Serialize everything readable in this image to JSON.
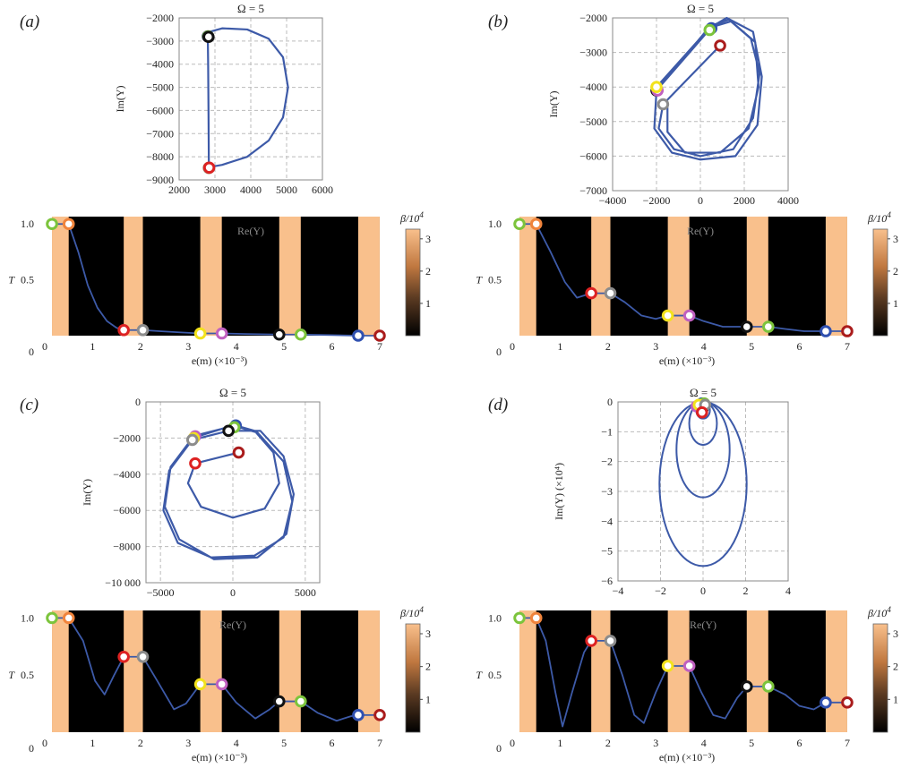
{
  "figure": {
    "transmission_ylabel": "T",
    "colorbar_label": "β/10",
    "colorbar_label_exp": "4",
    "colorbar_ticks": [
      1,
      2,
      3
    ],
    "colorbar_range": [
      0,
      3.3
    ],
    "colors": {
      "curve": "#3d5aa8",
      "high_beta": "#f9c08c",
      "low_beta": "#000000",
      "grid": "#bbbbbb",
      "frame": "#888888"
    },
    "marker_colors": [
      "#7cc43c",
      "#f0843c",
      "#dd2222",
      "#8c8c8c",
      "#f2e21c",
      "#c060c0",
      "#111111",
      "#7cc43c",
      "#3050b0",
      "#aa1c1c"
    ]
  },
  "chart_data": [
    {
      "panel": "(a)",
      "type": "line",
      "title": "Ω = 5",
      "xlabel": "Re(Y)",
      "ylabel": "Im(Y)",
      "xlim": [
        2000,
        6000
      ],
      "ylim": [
        -9000,
        -2000
      ],
      "xticks": [
        2000,
        3000,
        4000,
        5000,
        6000
      ],
      "yticks": [
        -9000,
        -8000,
        -7000,
        -6000,
        -5000,
        -4000,
        -3000,
        -2000
      ],
      "xtick_labels": [
        "2000",
        "3000",
        "4000",
        "5000",
        "6000"
      ],
      "ytick_labels": [
        "−9000",
        "−8000",
        "−7000",
        "−6000",
        "−5000",
        "−4000",
        "−3000",
        "−2000"
      ],
      "grid": true,
      "curve": [
        [
          2800,
          -2800
        ],
        [
          2850,
          -2600
        ],
        [
          3200,
          -2450
        ],
        [
          3900,
          -2500
        ],
        [
          4500,
          -2900
        ],
        [
          4900,
          -3700
        ],
        [
          5040,
          -5000
        ],
        [
          4900,
          -6300
        ],
        [
          4500,
          -7300
        ],
        [
          3900,
          -8000
        ],
        [
          3200,
          -8350
        ],
        [
          2830,
          -8450
        ],
        [
          2820,
          -8500
        ],
        [
          2830,
          -8400
        ],
        [
          2820,
          -6000
        ],
        [
          2810,
          -4000
        ],
        [
          2800,
          -2800
        ]
      ],
      "markers": [
        [
          2800,
          -2800
        ],
        [
          2800,
          -2800
        ],
        [
          2810,
          -2800
        ],
        [
          2820,
          -2820
        ],
        [
          2830,
          -8480
        ],
        [
          2830,
          -8480
        ],
        [
          2830,
          -8480
        ],
        [
          2840,
          -8470
        ]
      ]
    },
    {
      "panel": "(b)",
      "type": "line",
      "title": "Ω = 5",
      "xlabel": "Re(Y)",
      "ylabel": "Im(Y)",
      "xlim": [
        -4000,
        4000
      ],
      "ylim": [
        -7000,
        -2000
      ],
      "xticks": [
        -4000,
        -2000,
        0,
        2000,
        4000
      ],
      "yticks": [
        -7000,
        -6000,
        -5000,
        -4000,
        -3000,
        -2000
      ],
      "xtick_labels": [
        "−4000",
        "−2000",
        "0",
        "2000",
        "4000"
      ],
      "ytick_labels": [
        "−7000",
        "−6000",
        "−5000",
        "−4000",
        "−3000",
        "−2000"
      ],
      "grid": true,
      "curve": [
        [
          900,
          -2800
        ],
        [
          -1700,
          -4500
        ],
        [
          -1900,
          -5200
        ],
        [
          -1200,
          -5800
        ],
        [
          0,
          -6000
        ],
        [
          1500,
          -5800
        ],
        [
          2400,
          -4900
        ],
        [
          2700,
          -3600
        ],
        [
          2300,
          -2600
        ],
        [
          1300,
          -2050
        ],
        [
          600,
          -2200
        ],
        [
          -2000,
          -4100
        ],
        [
          -2000,
          -4000
        ],
        [
          400,
          -2300
        ],
        [
          1200,
          -2000
        ],
        [
          2400,
          -2400
        ],
        [
          2800,
          -3700
        ],
        [
          2600,
          -5100
        ],
        [
          1600,
          -6000
        ],
        [
          0,
          -6100
        ],
        [
          -1300,
          -5900
        ],
        [
          -2100,
          -5200
        ],
        [
          -2000,
          -4100
        ],
        [
          300,
          -2350
        ],
        [
          600,
          -2250
        ],
        [
          1400,
          -2100
        ],
        [
          2500,
          -2700
        ],
        [
          2650,
          -4000
        ],
        [
          2200,
          -5200
        ],
        [
          900,
          -5900
        ],
        [
          -700,
          -5900
        ],
        [
          -1500,
          -5300
        ],
        [
          -1500,
          -4600
        ],
        [
          -1700,
          -4500
        ]
      ],
      "markers": [
        [
          900,
          -2800
        ],
        [
          500,
          -2300
        ],
        [
          420,
          -2350
        ],
        [
          -2000,
          -4100
        ],
        [
          -1950,
          -4100
        ],
        [
          -2000,
          -4000
        ],
        [
          -1700,
          -4500
        ]
      ]
    },
    {
      "panel": "(c)",
      "type": "line",
      "title": "Ω = 5",
      "xlabel": "Re(Y)",
      "ylabel": "Im(Y)",
      "xlim": [
        -6000,
        6000
      ],
      "ylim": [
        -10000,
        0
      ],
      "xticks": [
        -5000,
        0,
        5000
      ],
      "yticks": [
        -10000,
        -8000,
        -6000,
        -4000,
        -2000,
        0
      ],
      "xtick_labels": [
        "−5000",
        "0",
        "5000"
      ],
      "ytick_labels": [
        "−10 000",
        "−8000",
        "−6000",
        "−4000",
        "−2000",
        "0"
      ],
      "grid": true,
      "curve": [
        [
          400,
          -2800
        ],
        [
          -2600,
          -3400
        ],
        [
          -3100,
          -4500
        ],
        [
          -2200,
          -5800
        ],
        [
          0,
          -6400
        ],
        [
          2200,
          -5900
        ],
        [
          3200,
          -4500
        ],
        [
          2800,
          -2800
        ],
        [
          1500,
          -1600
        ],
        [
          200,
          -1300
        ],
        [
          -2800,
          -1900
        ],
        [
          -2900,
          -2200
        ],
        [
          -4400,
          -3800
        ],
        [
          -4800,
          -6000
        ],
        [
          -3800,
          -7800
        ],
        [
          -1500,
          -8600
        ],
        [
          1500,
          -8500
        ],
        [
          3500,
          -7500
        ],
        [
          4100,
          -5500
        ],
        [
          3500,
          -3300
        ],
        [
          1700,
          -1700
        ],
        [
          0,
          -1300
        ],
        [
          -2800,
          -2000
        ],
        [
          -4300,
          -3600
        ],
        [
          -4700,
          -5800
        ],
        [
          -3700,
          -7600
        ],
        [
          -1300,
          -8700
        ],
        [
          1700,
          -8600
        ],
        [
          3700,
          -7300
        ],
        [
          4200,
          -5100
        ],
        [
          3500,
          -3000
        ],
        [
          1900,
          -1600
        ],
        [
          -300,
          -1600
        ],
        [
          -2800,
          -2100
        ]
      ],
      "markers": [
        [
          400,
          -2800
        ],
        [
          200,
          -1300
        ],
        [
          100,
          -1400
        ],
        [
          -300,
          -1600
        ],
        [
          -2600,
          -1900
        ],
        [
          -2700,
          -2000
        ],
        [
          -2800,
          -2100
        ],
        [
          -2600,
          -3400
        ]
      ]
    },
    {
      "panel": "(d)",
      "type": "line",
      "title": "Ω = 5",
      "xlabel": "Re(Y)",
      "ylabel": "Im(Y) (×10⁴)",
      "x_multiplier": "×10⁻⁴",
      "xlim": [
        -4,
        4
      ],
      "ylim": [
        -6,
        0
      ],
      "xticks": [
        -4,
        -2,
        0,
        2,
        4
      ],
      "yticks": [
        -6,
        -5,
        -4,
        -3,
        -2,
        -1,
        0
      ],
      "xtick_labels": [
        "−4",
        "−2",
        "0",
        "2",
        "4"
      ],
      "ytick_labels": [
        "−6",
        "−5",
        "−4",
        "−3",
        "−2",
        "−1",
        "0"
      ],
      "grid": true,
      "loops": [
        {
          "cx": 0.0,
          "cy": -2.75,
          "rx": 2.05,
          "ry": 2.75
        },
        {
          "cx": 0.0,
          "cy": -1.6,
          "rx": 1.25,
          "ry": 1.6
        },
        {
          "cx": 0.0,
          "cy": -0.72,
          "rx": 0.65,
          "ry": 0.72
        },
        {
          "cx": 0.0,
          "cy": -0.28,
          "rx": 0.32,
          "ry": 0.28
        }
      ],
      "markers": [
        [
          0,
          -0.1
        ],
        [
          -0.05,
          -0.05
        ],
        [
          0.05,
          -0.05
        ],
        [
          0.0,
          -0.2
        ],
        [
          -0.3,
          -0.15
        ],
        [
          -0.2,
          -0.1
        ],
        [
          0.1,
          -0.1
        ],
        [
          -0.05,
          -0.35
        ]
      ]
    },
    {
      "panel": "(a)",
      "type": "line",
      "xlabel": "e(m) (×10⁻³)",
      "ylabel": "T",
      "xlim": [
        0,
        7.3
      ],
      "ylim": [
        0,
        1.05
      ],
      "xticks": [
        0,
        1,
        2,
        3,
        4,
        5,
        6,
        7
      ],
      "ytick_labels": [
        "0.5",
        "1.0"
      ],
      "yticks": [
        0.5,
        1.0
      ],
      "grid": false,
      "bands": [
        [
          0.15,
          0.5
        ],
        [
          1.65,
          2.05
        ],
        [
          3.25,
          3.7
        ],
        [
          4.9,
          5.35
        ],
        [
          6.55,
          7.0
        ]
      ],
      "markers": [
        [
          0.15,
          1.0
        ],
        [
          0.5,
          1.0
        ],
        [
          1.65,
          0.05
        ],
        [
          2.05,
          0.05
        ],
        [
          3.25,
          0.02
        ],
        [
          3.7,
          0.02
        ],
        [
          4.9,
          0.01
        ],
        [
          5.35,
          0.01
        ],
        [
          6.55,
          0.0
        ],
        [
          7.0,
          0.0
        ]
      ],
      "curve": [
        [
          0.15,
          1.0
        ],
        [
          0.5,
          1.0
        ],
        [
          0.7,
          0.75
        ],
        [
          0.9,
          0.45
        ],
        [
          1.1,
          0.25
        ],
        [
          1.3,
          0.13
        ],
        [
          1.5,
          0.07
        ],
        [
          1.65,
          0.05
        ],
        [
          2.05,
          0.05
        ],
        [
          2.4,
          0.04
        ],
        [
          2.8,
          0.03
        ],
        [
          3.25,
          0.02
        ],
        [
          3.7,
          0.02
        ],
        [
          4.2,
          0.015
        ],
        [
          4.9,
          0.01
        ],
        [
          5.35,
          0.01
        ],
        [
          6.0,
          0.005
        ],
        [
          6.55,
          0.0
        ],
        [
          7.0,
          0.0
        ]
      ]
    },
    {
      "panel": "(b)",
      "type": "line",
      "xlabel": "e(m) (×10⁻³)",
      "ylabel": "T",
      "xlim": [
        0,
        7.3
      ],
      "ylim": [
        0,
        1.05
      ],
      "xticks": [
        0,
        1,
        2,
        3,
        4,
        5,
        6,
        7
      ],
      "ytick_labels": [
        "0.5",
        "1.0"
      ],
      "yticks": [
        0.5,
        1.0
      ],
      "grid": false,
      "bands": [
        [
          0.15,
          0.5
        ],
        [
          1.65,
          2.05
        ],
        [
          3.25,
          3.7
        ],
        [
          4.9,
          5.35
        ],
        [
          6.55,
          7.0
        ]
      ],
      "markers": [
        [
          0.15,
          1.0
        ],
        [
          0.5,
          1.0
        ],
        [
          1.65,
          0.38
        ],
        [
          2.05,
          0.38
        ],
        [
          3.25,
          0.18
        ],
        [
          3.7,
          0.18
        ],
        [
          4.9,
          0.08
        ],
        [
          5.35,
          0.08
        ],
        [
          6.55,
          0.04
        ],
        [
          7.0,
          0.04
        ]
      ],
      "curve": [
        [
          0.15,
          1.0
        ],
        [
          0.5,
          1.0
        ],
        [
          0.8,
          0.75
        ],
        [
          1.1,
          0.48
        ],
        [
          1.35,
          0.34
        ],
        [
          1.65,
          0.38
        ],
        [
          2.05,
          0.38
        ],
        [
          2.35,
          0.3
        ],
        [
          2.7,
          0.18
        ],
        [
          3.0,
          0.15
        ],
        [
          3.25,
          0.18
        ],
        [
          3.7,
          0.18
        ],
        [
          4.0,
          0.13
        ],
        [
          4.4,
          0.08
        ],
        [
          4.9,
          0.08
        ],
        [
          5.35,
          0.08
        ],
        [
          5.7,
          0.06
        ],
        [
          6.1,
          0.04
        ],
        [
          6.55,
          0.04
        ],
        [
          7.0,
          0.04
        ]
      ]
    },
    {
      "panel": "(c)",
      "type": "line",
      "xlabel": "e(m) (×10⁻³)",
      "ylabel": "T",
      "xlim": [
        0,
        7.3
      ],
      "ylim": [
        0,
        1.05
      ],
      "xticks": [
        0,
        1,
        2,
        3,
        4,
        5,
        6,
        7
      ],
      "ytick_labels": [
        "0.5",
        "1.0"
      ],
      "yticks": [
        0.5,
        1.0
      ],
      "grid": false,
      "bands": [
        [
          0.15,
          0.5
        ],
        [
          1.65,
          2.05
        ],
        [
          3.25,
          3.7
        ],
        [
          4.9,
          5.35
        ],
        [
          6.55,
          7.0
        ]
      ],
      "markers": [
        [
          0.15,
          1.0
        ],
        [
          0.5,
          1.0
        ],
        [
          1.65,
          0.66
        ],
        [
          2.05,
          0.66
        ],
        [
          3.25,
          0.42
        ],
        [
          3.7,
          0.42
        ],
        [
          4.9,
          0.27
        ],
        [
          5.35,
          0.27
        ],
        [
          6.55,
          0.15
        ],
        [
          7.0,
          0.15
        ]
      ],
      "curve": [
        [
          0.15,
          1.0
        ],
        [
          0.5,
          1.0
        ],
        [
          0.8,
          0.8
        ],
        [
          1.05,
          0.45
        ],
        [
          1.25,
          0.33
        ],
        [
          1.45,
          0.5
        ],
        [
          1.65,
          0.66
        ],
        [
          2.05,
          0.66
        ],
        [
          2.35,
          0.45
        ],
        [
          2.7,
          0.2
        ],
        [
          2.95,
          0.25
        ],
        [
          3.25,
          0.42
        ],
        [
          3.7,
          0.42
        ],
        [
          4.0,
          0.26
        ],
        [
          4.4,
          0.12
        ],
        [
          4.7,
          0.2
        ],
        [
          4.9,
          0.27
        ],
        [
          5.35,
          0.27
        ],
        [
          5.7,
          0.17
        ],
        [
          6.1,
          0.1
        ],
        [
          6.4,
          0.14
        ],
        [
          6.55,
          0.15
        ],
        [
          7.0,
          0.15
        ]
      ]
    },
    {
      "panel": "(d)",
      "type": "line",
      "xlabel": "e(m) (×10⁻³)",
      "ylabel": "T",
      "xlim": [
        0,
        7.3
      ],
      "ylim": [
        0,
        1.05
      ],
      "xticks": [
        0,
        1,
        2,
        3,
        4,
        5,
        6,
        7
      ],
      "ytick_labels": [
        "0.5",
        "1.0"
      ],
      "yticks": [
        0.5,
        1.0
      ],
      "grid": false,
      "bands": [
        [
          0.15,
          0.5
        ],
        [
          1.65,
          2.05
        ],
        [
          3.25,
          3.7
        ],
        [
          4.9,
          5.35
        ],
        [
          6.55,
          7.0
        ]
      ],
      "markers": [
        [
          0.15,
          1.0
        ],
        [
          0.5,
          1.0
        ],
        [
          1.65,
          0.8
        ],
        [
          2.05,
          0.8
        ],
        [
          3.25,
          0.58
        ],
        [
          3.7,
          0.58
        ],
        [
          4.9,
          0.4
        ],
        [
          5.35,
          0.4
        ],
        [
          6.55,
          0.26
        ],
        [
          7.0,
          0.26
        ]
      ],
      "curve": [
        [
          0.15,
          1.0
        ],
        [
          0.5,
          1.0
        ],
        [
          0.7,
          0.8
        ],
        [
          0.9,
          0.35
        ],
        [
          1.05,
          0.05
        ],
        [
          1.25,
          0.35
        ],
        [
          1.5,
          0.7
        ],
        [
          1.65,
          0.8
        ],
        [
          2.05,
          0.8
        ],
        [
          2.3,
          0.5
        ],
        [
          2.55,
          0.15
        ],
        [
          2.75,
          0.08
        ],
        [
          3.0,
          0.35
        ],
        [
          3.25,
          0.58
        ],
        [
          3.7,
          0.58
        ],
        [
          3.95,
          0.35
        ],
        [
          4.2,
          0.15
        ],
        [
          4.45,
          0.12
        ],
        [
          4.7,
          0.3
        ],
        [
          4.9,
          0.4
        ],
        [
          5.35,
          0.4
        ],
        [
          5.7,
          0.33
        ],
        [
          6.0,
          0.23
        ],
        [
          6.3,
          0.2
        ],
        [
          6.55,
          0.26
        ],
        [
          7.0,
          0.26
        ]
      ]
    }
  ]
}
